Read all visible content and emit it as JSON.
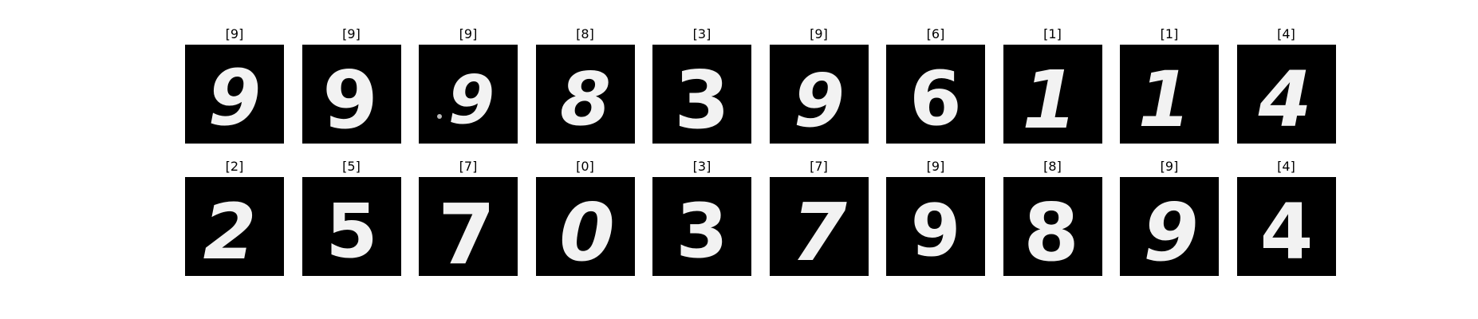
{
  "samples": [
    {
      "label": "[9]",
      "digit": "9"
    },
    {
      "label": "[9]",
      "digit": "9"
    },
    {
      "label": "[9]",
      "digit": "9"
    },
    {
      "label": "[8]",
      "digit": "8"
    },
    {
      "label": "[3]",
      "digit": "3"
    },
    {
      "label": "[9]",
      "digit": "9"
    },
    {
      "label": "[6]",
      "digit": "6"
    },
    {
      "label": "[1]",
      "digit": "1"
    },
    {
      "label": "[1]",
      "digit": "1"
    },
    {
      "label": "[4]",
      "digit": "4"
    },
    {
      "label": "[2]",
      "digit": "2"
    },
    {
      "label": "[5]",
      "digit": "5"
    },
    {
      "label": "[7]",
      "digit": "7"
    },
    {
      "label": "[0]",
      "digit": "0"
    },
    {
      "label": "[3]",
      "digit": "3"
    },
    {
      "label": "[7]",
      "digit": "7"
    },
    {
      "label": "[9]",
      "digit": "9"
    },
    {
      "label": "[8]",
      "digit": "8"
    },
    {
      "label": "[9]",
      "digit": "9"
    },
    {
      "label": "[4]",
      "digit": "4"
    }
  ]
}
